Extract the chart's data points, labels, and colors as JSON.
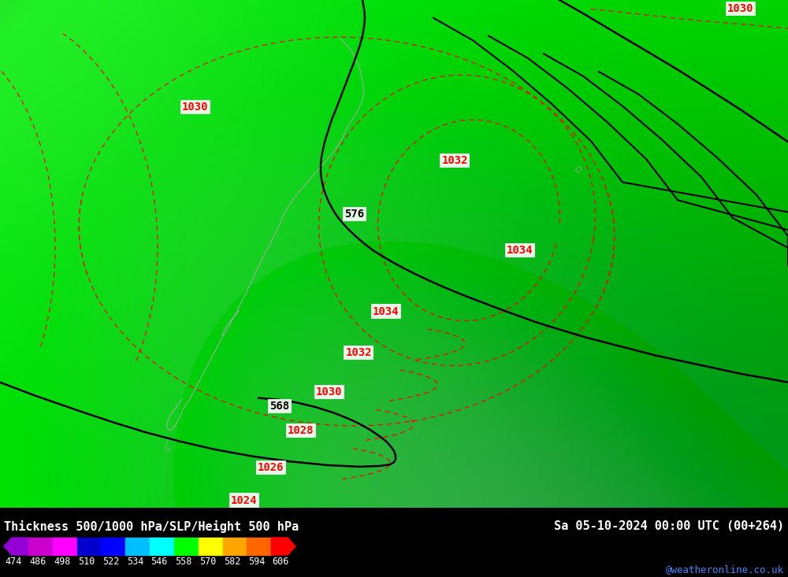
{
  "title_left": "Thickness 500/1000 hPa/SLP/Height 500 hPa",
  "title_right": "Sa 05-10-2024 00:00 UTC (00+264)",
  "colorbar_labels": [
    "474",
    "486",
    "498",
    "510",
    "522",
    "534",
    "546",
    "558",
    "570",
    "582",
    "594",
    "606"
  ],
  "colorbar_colors": [
    "#9400D3",
    "#CC00CC",
    "#FF00FF",
    "#0000CD",
    "#0000FF",
    "#00BFFF",
    "#00FFFF",
    "#00FF00",
    "#FFFF00",
    "#FFA500",
    "#FF6600",
    "#FF0000"
  ],
  "watermark": "@weatheronline.co.uk",
  "fig_width": 10.0,
  "fig_height": 7.33,
  "bg_green_main": "#00FF00",
  "bg_green_dark": "#009900",
  "bg_green_mid": "#00CC00",
  "bg_light_green": "#44FF44"
}
